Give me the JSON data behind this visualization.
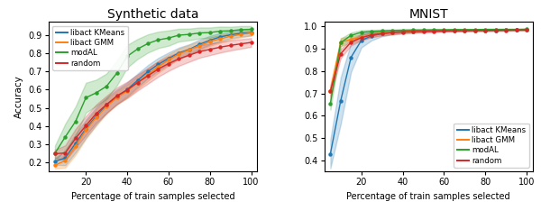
{
  "synthetic": {
    "title": "Synthetic data",
    "xlabel": "Percentage of train samples selected",
    "ylabel": "Accuracy",
    "x": [
      5,
      10,
      15,
      20,
      25,
      30,
      35,
      40,
      45,
      50,
      55,
      60,
      65,
      70,
      75,
      80,
      85,
      90,
      95,
      100
    ],
    "kmeans_mean": [
      0.205,
      0.225,
      0.305,
      0.385,
      0.455,
      0.515,
      0.56,
      0.6,
      0.65,
      0.698,
      0.738,
      0.77,
      0.8,
      0.82,
      0.848,
      0.87,
      0.888,
      0.9,
      0.908,
      0.912
    ],
    "kmeans_std": [
      0.018,
      0.04,
      0.05,
      0.05,
      0.048,
      0.042,
      0.04,
      0.038,
      0.037,
      0.036,
      0.035,
      0.033,
      0.03,
      0.028,
      0.026,
      0.024,
      0.022,
      0.02,
      0.018,
      0.016
    ],
    "gmm_mean": [
      0.185,
      0.21,
      0.29,
      0.378,
      0.448,
      0.508,
      0.555,
      0.592,
      0.638,
      0.682,
      0.725,
      0.762,
      0.795,
      0.818,
      0.84,
      0.862,
      0.878,
      0.892,
      0.902,
      0.91
    ],
    "gmm_std": [
      0.018,
      0.038,
      0.048,
      0.048,
      0.046,
      0.04,
      0.038,
      0.036,
      0.035,
      0.034,
      0.033,
      0.031,
      0.029,
      0.027,
      0.025,
      0.023,
      0.021,
      0.019,
      0.017,
      0.015
    ],
    "modal_mean": [
      0.25,
      0.34,
      0.425,
      0.555,
      0.582,
      0.618,
      0.69,
      0.782,
      0.822,
      0.852,
      0.872,
      0.882,
      0.898,
      0.902,
      0.91,
      0.912,
      0.92,
      0.922,
      0.928,
      0.93
    ],
    "modal_std": [
      0.042,
      0.072,
      0.082,
      0.082,
      0.072,
      0.07,
      0.068,
      0.062,
      0.055,
      0.05,
      0.045,
      0.042,
      0.035,
      0.032,
      0.03,
      0.028,
      0.025,
      0.022,
      0.02,
      0.018
    ],
    "random_mean": [
      0.248,
      0.252,
      0.332,
      0.402,
      0.468,
      0.518,
      0.565,
      0.598,
      0.638,
      0.675,
      0.712,
      0.742,
      0.768,
      0.788,
      0.808,
      0.82,
      0.832,
      0.842,
      0.85,
      0.858
    ],
    "random_std": [
      0.022,
      0.042,
      0.052,
      0.052,
      0.05,
      0.048,
      0.046,
      0.045,
      0.044,
      0.043,
      0.042,
      0.04,
      0.038,
      0.036,
      0.034,
      0.032,
      0.03,
      0.028,
      0.026,
      0.024
    ],
    "ylim": [
      0.15,
      0.97
    ],
    "yticks": [
      0.2,
      0.3,
      0.4,
      0.5,
      0.6,
      0.7,
      0.8,
      0.9
    ],
    "xlim": [
      2,
      103
    ],
    "xticks": [
      20,
      40,
      60,
      80,
      100
    ],
    "legend_loc": "upper left"
  },
  "mnist": {
    "title": "MNIST",
    "xlabel": "Percentage of train samples selected",
    "ylabel": "",
    "x": [
      5,
      10,
      15,
      20,
      25,
      30,
      35,
      40,
      45,
      50,
      55,
      60,
      65,
      70,
      75,
      80,
      85,
      90,
      95,
      100
    ],
    "kmeans_mean": [
      0.43,
      0.668,
      0.862,
      0.938,
      0.958,
      0.968,
      0.974,
      0.977,
      0.979,
      0.98,
      0.981,
      0.981,
      0.982,
      0.982,
      0.983,
      0.983,
      0.983,
      0.984,
      0.984,
      0.985
    ],
    "kmeans_std": [
      0.065,
      0.105,
      0.065,
      0.032,
      0.02,
      0.012,
      0.009,
      0.007,
      0.006,
      0.005,
      0.005,
      0.004,
      0.004,
      0.004,
      0.003,
      0.003,
      0.003,
      0.003,
      0.002,
      0.002
    ],
    "gmm_mean": [
      0.712,
      0.93,
      0.942,
      0.952,
      0.964,
      0.97,
      0.974,
      0.977,
      0.979,
      0.98,
      0.981,
      0.982,
      0.982,
      0.983,
      0.983,
      0.983,
      0.984,
      0.984,
      0.984,
      0.985
    ],
    "gmm_std": [
      0.028,
      0.018,
      0.016,
      0.013,
      0.01,
      0.008,
      0.007,
      0.006,
      0.005,
      0.005,
      0.004,
      0.004,
      0.003,
      0.003,
      0.003,
      0.003,
      0.002,
      0.002,
      0.002,
      0.002
    ],
    "modal_mean": [
      0.655,
      0.928,
      0.96,
      0.974,
      0.978,
      0.98,
      0.982,
      0.983,
      0.984,
      0.984,
      0.985,
      0.985,
      0.986,
      0.986,
      0.986,
      0.987,
      0.987,
      0.987,
      0.987,
      0.988
    ],
    "modal_std": [
      0.028,
      0.018,
      0.013,
      0.009,
      0.007,
      0.006,
      0.005,
      0.005,
      0.004,
      0.004,
      0.003,
      0.003,
      0.003,
      0.003,
      0.002,
      0.002,
      0.002,
      0.002,
      0.002,
      0.001
    ],
    "random_mean": [
      0.71,
      0.878,
      0.93,
      0.95,
      0.962,
      0.968,
      0.972,
      0.975,
      0.977,
      0.978,
      0.979,
      0.98,
      0.981,
      0.981,
      0.982,
      0.982,
      0.983,
      0.983,
      0.984,
      0.984
    ],
    "random_std": [
      0.024,
      0.02,
      0.015,
      0.012,
      0.01,
      0.009,
      0.008,
      0.007,
      0.006,
      0.005,
      0.005,
      0.004,
      0.004,
      0.003,
      0.003,
      0.003,
      0.003,
      0.002,
      0.002,
      0.002
    ],
    "ylim": [
      0.35,
      1.02
    ],
    "yticks": [
      0.4,
      0.5,
      0.6,
      0.7,
      0.8,
      0.9,
      1.0
    ],
    "xlim": [
      2,
      103
    ],
    "xticks": [
      20,
      40,
      60,
      80,
      100
    ],
    "legend_loc": "lower right"
  },
  "colors": {
    "kmeans": "#1f77b4",
    "gmm": "#ff7f0e",
    "modal": "#2ca02c",
    "random": "#d62728"
  },
  "legend_labels": [
    "libact KMeans",
    "libact GMM",
    "modAL",
    "random"
  ],
  "series_order": [
    "kmeans",
    "gmm",
    "modal",
    "random"
  ]
}
